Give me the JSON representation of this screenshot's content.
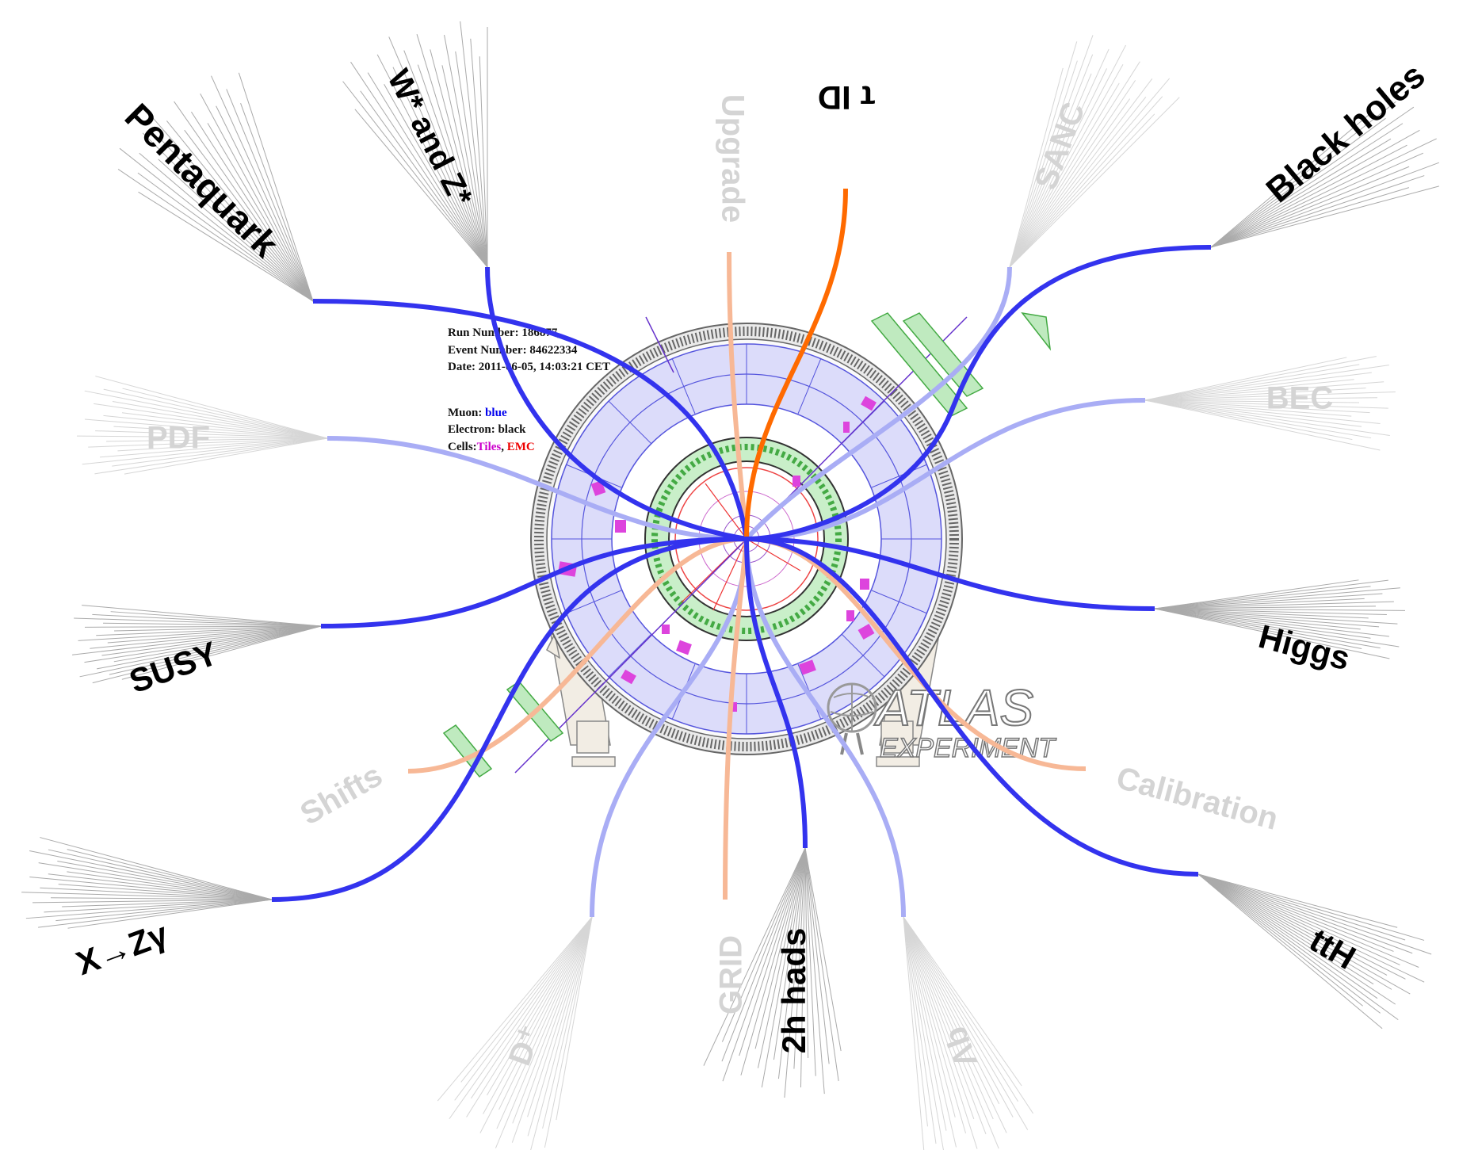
{
  "event_info": {
    "run": "Run Number: 186877,",
    "event": "Event Number: 84622334",
    "date": "Date: 2011-06-05, 14:03:21 CET",
    "muon_label": "Muon: ",
    "muon_value": "blue",
    "electron_label": "Electron: ",
    "electron_value": "black",
    "cells_label": "Cells:",
    "cells_tiles": "Tiles",
    "cells_sep": ", ",
    "cells_emc": "EMC"
  },
  "logo": {
    "name": "ATLAS",
    "sub": "EXPERIMENT"
  },
  "colors": {
    "blue_track": "#3333ee",
    "light_blue_track": "#a9adf5",
    "orange_track": "#ff6a00",
    "light_orange_track": "#f7b896",
    "active_label": "#000000",
    "faded_label": "#d4d4d4",
    "detector_fill": "#dcdcfa",
    "green_panels": "#bfeabf",
    "magenta_cells": "#dd44dd"
  },
  "branches": [
    {
      "id": "pentaquark",
      "label": "Pentaquark",
      "state": "active",
      "color": "blue"
    },
    {
      "id": "wz",
      "label": "W* and Z*",
      "state": "active",
      "color": "blue"
    },
    {
      "id": "upgrade",
      "label": "Upgrade",
      "state": "faded",
      "color": "orange"
    },
    {
      "id": "tau-id",
      "label": "τ ID",
      "state": "active",
      "color": "orange"
    },
    {
      "id": "sanc",
      "label": "SANC",
      "state": "faded",
      "color": "blue"
    },
    {
      "id": "black-holes",
      "label": "Black holes",
      "state": "active",
      "color": "blue"
    },
    {
      "id": "pdf",
      "label": "PDF",
      "state": "faded",
      "color": "blue"
    },
    {
      "id": "bec",
      "label": "BEC",
      "state": "faded",
      "color": "blue"
    },
    {
      "id": "susy",
      "label": "SUSY",
      "state": "active",
      "color": "blue"
    },
    {
      "id": "higgs",
      "label": "Higgs",
      "state": "active",
      "color": "blue"
    },
    {
      "id": "shifts",
      "label": "Shifts",
      "state": "faded",
      "color": "orange"
    },
    {
      "id": "calibration",
      "label": "Calibration",
      "state": "faded",
      "color": "orange"
    },
    {
      "id": "x-zgamma",
      "label": "X→Zγ",
      "state": "active",
      "color": "blue"
    },
    {
      "id": "tth",
      "label": "ttH",
      "state": "active",
      "color": "blue"
    },
    {
      "id": "d-plus",
      "label": "D⁺",
      "state": "faded",
      "color": "blue"
    },
    {
      "id": "grid",
      "label": "GRID",
      "state": "faded",
      "color": "orange"
    },
    {
      "id": "2h-hads",
      "label": "2h hads",
      "state": "active",
      "color": "blue"
    },
    {
      "id": "lambda-b",
      "label": "Λb",
      "state": "faded",
      "color": "blue"
    }
  ]
}
